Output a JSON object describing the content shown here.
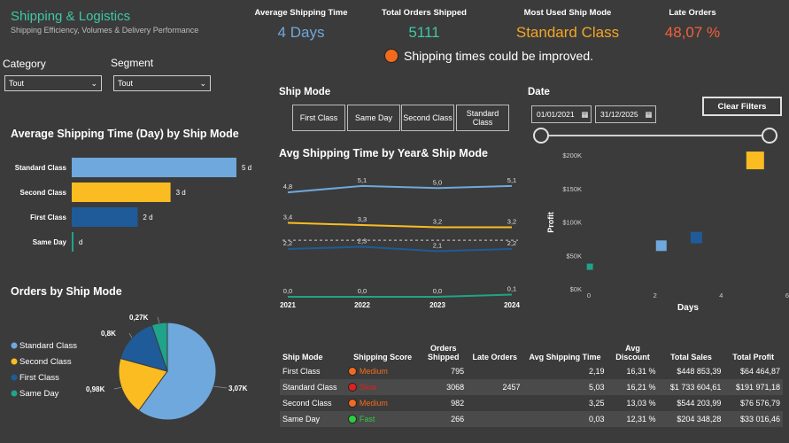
{
  "header": {
    "title": "Shipping & Logistics",
    "subtitle": "Shipping Efficiency, Volumes & Delivery Performance"
  },
  "kpis": [
    {
      "label": "Average Shipping Time",
      "value": "4 Days",
      "color": "#6fa8dc"
    },
    {
      "label": "Total Orders Shipped",
      "value": "5111",
      "color": "#3fc7a6"
    },
    {
      "label": "Most Used Ship Mode",
      "value": "Standard Class",
      "color": "#f5a623"
    },
    {
      "label": "Late Orders",
      "value": "48,07 %",
      "color": "#f2603a"
    }
  ],
  "alert": {
    "text": "Shipping times could be improved.",
    "color": "#f26b1d"
  },
  "filters": {
    "category": {
      "label": "Category",
      "value": "Tout"
    },
    "segment": {
      "label": "Segment",
      "value": "Tout"
    }
  },
  "ship_mode_slicer": {
    "title": "Ship Mode",
    "buttons": [
      "First Class",
      "Same Day",
      "Second Class",
      "Standard Class"
    ]
  },
  "date_slicer": {
    "title": "Date",
    "start": "01/01/2021",
    "end": "31/12/2025",
    "clear_label": "Clear Filters"
  },
  "colors": {
    "standard": "#6fa8dc",
    "second": "#fbbc22",
    "first": "#1f5b99",
    "same_day": "#1fa38a"
  },
  "chart_data": [
    {
      "type": "bar",
      "title": "Average Shipping Time (Day) by Ship Mode",
      "categories": [
        "Standard Class",
        "Second Class",
        "First Class",
        "Same Day"
      ],
      "values": [
        5,
        3,
        2,
        0
      ],
      "labels": [
        "5 d",
        "3 d",
        "2 d",
        "d"
      ],
      "xlim": [
        0,
        5
      ]
    },
    {
      "type": "pie",
      "title": "Orders by Ship Mode",
      "categories": [
        "Standard Class",
        "Second Class",
        "First Class",
        "Same Day"
      ],
      "values": [
        3068,
        982,
        795,
        266
      ],
      "labels": [
        "3,07K",
        "0,98K",
        "0,8K",
        "0,27K"
      ],
      "legend": "left"
    },
    {
      "type": "line",
      "title": "Avg Shipping Time by Year& Ship Mode",
      "x": [
        "2021",
        "2022",
        "2023",
        "2024"
      ],
      "series": [
        {
          "values": [
            4.8,
            5.1,
            5.0,
            5.1
          ],
          "labels": [
            "4,8",
            "5,1",
            "5,0",
            "5,1"
          ]
        },
        {
          "values": [
            3.4,
            3.3,
            3.2,
            3.2
          ],
          "labels": [
            "3,4",
            "3,3",
            "3,2",
            "3,2"
          ]
        },
        {
          "values": [
            2.2,
            2.3,
            2.1,
            2.2
          ],
          "labels": [
            "2,2",
            "2,3",
            "2,1",
            "2,2"
          ]
        },
        {
          "values": [
            0.0,
            0.0,
            0.0,
            0.1
          ],
          "labels": [
            "0,0",
            "0,0",
            "0,0",
            "0,1"
          ]
        }
      ],
      "reference_line": 2.6,
      "ylim": [
        0,
        5.5
      ]
    },
    {
      "type": "scatter",
      "x": [
        0.03,
        2.19,
        3.25,
        5.03
      ],
      "y": [
        33016,
        64465,
        76577,
        191971
      ],
      "ylabel": "Profit",
      "xlabel": "Days",
      "xlim": [
        0,
        6
      ],
      "ylim": [
        0,
        200000
      ],
      "xticks": [
        "0",
        "2",
        "4",
        "6"
      ],
      "yticks": [
        "$0K",
        "$50K",
        "$100K",
        "$150K",
        "$200K"
      ]
    }
  ],
  "table": {
    "columns": [
      "Ship Mode",
      "Shipping Score",
      "Orders Shipped",
      "Late Orders",
      "Avg Shipping Time",
      "Avg Discount",
      "Total Sales",
      "Total Profit"
    ],
    "rows": [
      {
        "mode": "First Class",
        "score": "Medium",
        "score_color": "#f26b1d",
        "orders": "795",
        "late": "",
        "avg_time": "2,19",
        "discount": "16,31 %",
        "sales": "$448 853,39",
        "profit": "$64 464,87"
      },
      {
        "mode": "Standard Class",
        "score": "Slow",
        "score_color": "#e02020",
        "orders": "3068",
        "late": "2457",
        "avg_time": "5,03",
        "discount": "16,21 %",
        "sales": "$1 733 604,61",
        "profit": "$191 971,18"
      },
      {
        "mode": "Second Class",
        "score": "Medium",
        "score_color": "#f26b1d",
        "orders": "982",
        "late": "",
        "avg_time": "3,25",
        "discount": "13,03 %",
        "sales": "$544 203,99",
        "profit": "$76 576,79"
      },
      {
        "mode": "Same Day",
        "score": "Fast",
        "score_color": "#2ecc40",
        "orders": "266",
        "late": "",
        "avg_time": "0,03",
        "discount": "12,31 %",
        "sales": "$204 348,28",
        "profit": "$33 016,46"
      }
    ]
  }
}
